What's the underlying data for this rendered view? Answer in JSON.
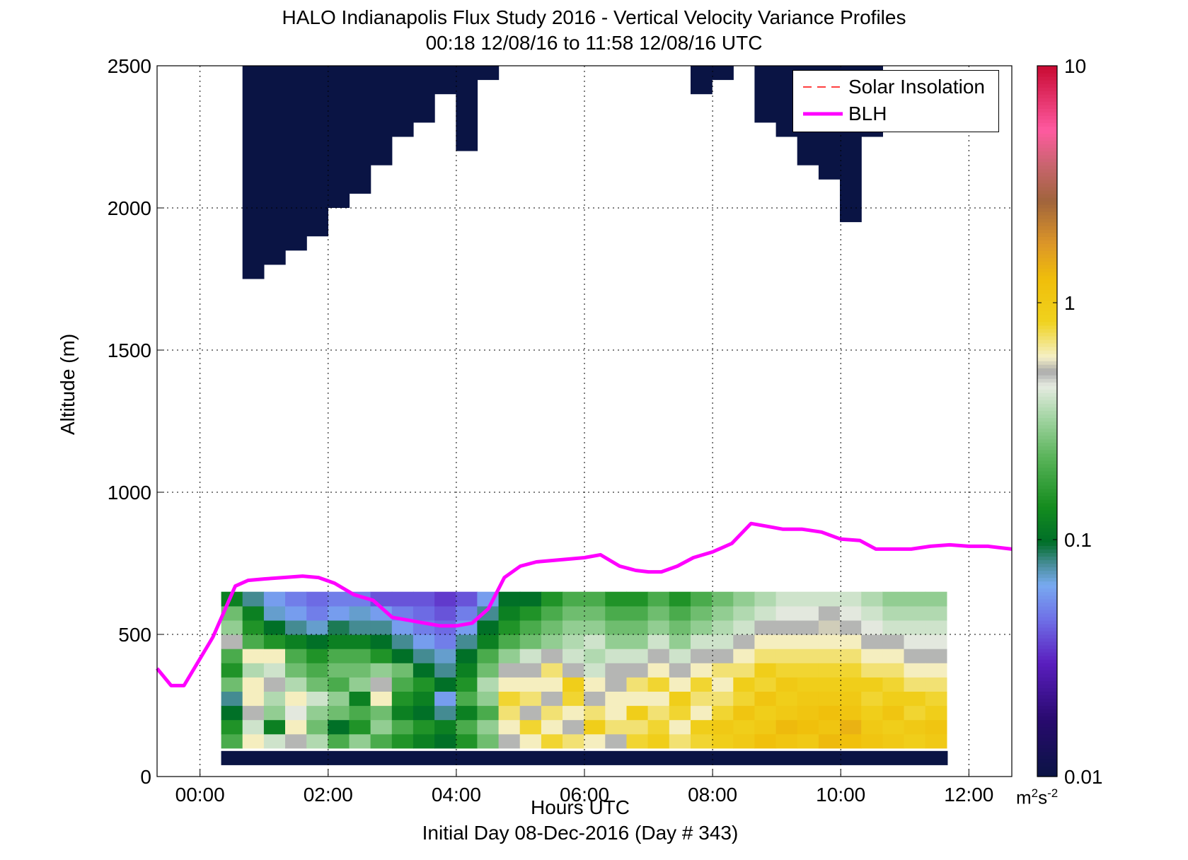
{
  "header": {
    "title_line1": "HALO Indianapolis Flux Study 2016 - Vertical Velocity Variance Profiles",
    "title_line2": "00:18 12/08/16 to 11:58 12/08/16  UTC"
  },
  "footer": {
    "initial_day": "Initial Day 08-Dec-2016 (Day # 343)"
  },
  "legend": {
    "entries": [
      "Solar Insolation",
      "BLH"
    ]
  },
  "colorbar": {
    "ticks": [
      "10",
      "1",
      "0.1",
      "0.01"
    ],
    "unit_base": "m",
    "unit_exp1": "2",
    "unit_mid": "s",
    "unit_exp2": "-2",
    "scale": "log",
    "range": [
      0.01,
      10
    ]
  },
  "colors": {
    "blh_line": "#ff00ff",
    "solar_line": "#ff0000",
    "low_variance": "#0a1444",
    "high_variance": "#c8102e"
  },
  "chart_data": {
    "type": "heatmap",
    "title": "HALO Indianapolis Flux Study 2016 - Vertical Velocity Variance Profiles",
    "subtitle": "00:18 12/08/16 to 11:58 12/08/16  UTC",
    "xlabel": "Hours UTC",
    "ylabel": "Altitude (m)",
    "xlim": [
      -0.67,
      12.67
    ],
    "ylim": [
      0,
      2500
    ],
    "xticks": [
      "00:00",
      "02:00",
      "04:00",
      "06:00",
      "08:00",
      "10:00",
      "12:00"
    ],
    "yticks": [
      "0",
      "500",
      "1000",
      "1500",
      "2000",
      "2500"
    ],
    "grid": true,
    "legend_position": "top-right",
    "heatmap": {
      "value_label": "vertical velocity variance (m^2 s^-2)",
      "time_start_h": 0.33,
      "time_step_h": 0.333,
      "alt_start_m": 100,
      "alt_step_m": 50,
      "low_level_profiles": [
        [
          0.2,
          0.15,
          0.1,
          0.08,
          0.25,
          0.15,
          0.2,
          0.5,
          0.3,
          0.25,
          0.12
        ],
        [
          0.6,
          0.4,
          0.5,
          0.6,
          0.6,
          0.35,
          0.6,
          0.2,
          0.15,
          0.12,
          0.08
        ],
        [
          0.4,
          0.12,
          0.3,
          0.35,
          0.5,
          0.4,
          0.6,
          0.15,
          0.1,
          0.07,
          0.06
        ],
        [
          0.5,
          0.6,
          0.45,
          0.6,
          0.35,
          0.25,
          0.2,
          0.12,
          0.08,
          0.06,
          0.05
        ],
        [
          0.35,
          0.25,
          0.3,
          0.4,
          0.25,
          0.2,
          0.15,
          0.1,
          0.07,
          0.05,
          0.045
        ],
        [
          0.2,
          0.1,
          0.25,
          0.3,
          0.2,
          0.25,
          0.2,
          0.12,
          0.09,
          0.06,
          0.05
        ],
        [
          0.3,
          0.15,
          0.2,
          0.12,
          0.3,
          0.25,
          0.2,
          0.12,
          0.08,
          0.07,
          0.05
        ],
        [
          0.2,
          0.3,
          0.25,
          0.6,
          0.5,
          0.3,
          0.15,
          0.1,
          0.08,
          0.06,
          0.04
        ],
        [
          0.15,
          0.2,
          0.12,
          0.15,
          0.2,
          0.25,
          0.1,
          0.08,
          0.06,
          0.05,
          0.04
        ],
        [
          0.12,
          0.15,
          0.1,
          0.12,
          0.15,
          0.1,
          0.08,
          0.06,
          0.05,
          0.045,
          0.04
        ],
        [
          0.1,
          0.12,
          0.08,
          0.06,
          0.1,
          0.08,
          0.07,
          0.05,
          0.045,
          0.04,
          0.035
        ],
        [
          0.15,
          0.2,
          0.12,
          0.2,
          0.15,
          0.12,
          0.1,
          0.08,
          0.06,
          0.05,
          0.04
        ],
        [
          0.25,
          0.3,
          0.2,
          0.3,
          0.35,
          0.25,
          0.2,
          0.12,
          0.1,
          0.08,
          0.06
        ],
        [
          0.5,
          0.6,
          0.7,
          0.8,
          0.6,
          0.5,
          0.3,
          0.2,
          0.15,
          0.12,
          0.1
        ],
        [
          0.6,
          0.8,
          0.5,
          0.7,
          0.6,
          0.5,
          0.4,
          0.25,
          0.2,
          0.15,
          0.1
        ],
        [
          0.8,
          0.6,
          0.7,
          0.5,
          0.6,
          0.7,
          0.5,
          0.3,
          0.25,
          0.2,
          0.15
        ],
        [
          0.7,
          0.5,
          0.6,
          0.8,
          0.9,
          0.5,
          0.4,
          0.35,
          0.3,
          0.25,
          0.2
        ],
        [
          0.6,
          0.9,
          0.7,
          0.5,
          0.6,
          0.4,
          0.35,
          0.4,
          0.3,
          0.25,
          0.2
        ],
        [
          0.5,
          0.7,
          0.6,
          0.6,
          0.5,
          0.5,
          0.4,
          0.3,
          0.25,
          0.2,
          0.15
        ],
        [
          0.8,
          0.7,
          0.9,
          0.6,
          0.7,
          0.5,
          0.4,
          0.3,
          0.25,
          0.2,
          0.15
        ],
        [
          0.9,
          0.8,
          0.7,
          0.6,
          0.8,
          0.6,
          0.5,
          0.4,
          0.3,
          0.25,
          0.2
        ],
        [
          0.7,
          0.6,
          0.8,
          0.9,
          0.6,
          0.5,
          0.4,
          0.3,
          0.25,
          0.2,
          0.15
        ],
        [
          0.8,
          0.9,
          0.6,
          0.7,
          0.8,
          0.6,
          0.5,
          0.4,
          0.3,
          0.25,
          0.2
        ],
        [
          0.9,
          1.0,
          0.8,
          0.7,
          0.6,
          0.7,
          0.5,
          0.4,
          0.35,
          0.3,
          0.25
        ],
        [
          1.0,
          0.9,
          1.1,
          0.8,
          0.9,
          0.7,
          0.6,
          0.5,
          0.4,
          0.35,
          0.3
        ],
        [
          1.2,
          1.0,
          0.9,
          1.1,
          0.8,
          0.9,
          0.7,
          0.6,
          0.5,
          0.4,
          0.35
        ],
        [
          1.1,
          1.3,
          1.0,
          0.9,
          1.0,
          0.8,
          0.7,
          0.6,
          0.5,
          0.45,
          0.4
        ],
        [
          1.0,
          1.2,
          1.1,
          1.0,
          0.9,
          0.8,
          0.7,
          0.6,
          0.5,
          0.45,
          0.4
        ],
        [
          1.3,
          1.1,
          1.2,
          1.0,
          0.9,
          0.8,
          0.7,
          0.6,
          0.55,
          0.5,
          0.4
        ],
        [
          1.2,
          1.4,
          1.1,
          1.0,
          0.9,
          0.8,
          0.7,
          0.6,
          0.5,
          0.45,
          0.4
        ],
        [
          1.1,
          1.0,
          0.9,
          0.8,
          0.9,
          0.7,
          0.6,
          0.5,
          0.45,
          0.4,
          0.35
        ],
        [
          1.0,
          0.9,
          1.1,
          0.9,
          0.8,
          0.7,
          0.6,
          0.5,
          0.4,
          0.35,
          0.3
        ],
        [
          0.9,
          1.0,
          0.8,
          0.9,
          0.7,
          0.6,
          0.5,
          0.45,
          0.4,
          0.35,
          0.3
        ],
        [
          1.0,
          1.1,
          0.9,
          0.8,
          0.7,
          0.6,
          0.5,
          0.45,
          0.4,
          0.35,
          0.3
        ]
      ],
      "top_coverage_m": [
        0,
        1750,
        1800,
        1850,
        1900,
        2000,
        2050,
        2150,
        2250,
        2300,
        2400,
        2200,
        2450,
        2500,
        0,
        0,
        0,
        0,
        0,
        0,
        0,
        0,
        2400,
        2450,
        2500,
        2300,
        2250,
        2150,
        2100,
        1950,
        2250,
        0,
        0,
        0
      ]
    },
    "series": [
      {
        "name": "BLH",
        "x": [
          -0.67,
          -0.45,
          -0.25,
          0.2,
          0.55,
          0.75,
          1.0,
          1.3,
          1.6,
          1.85,
          2.1,
          2.4,
          2.7,
          3.0,
          3.25,
          3.5,
          3.75,
          4.0,
          4.25,
          4.5,
          4.75,
          5.0,
          5.25,
          5.5,
          5.75,
          6.0,
          6.25,
          6.55,
          6.8,
          7.0,
          7.2,
          7.45,
          7.7,
          8.0,
          8.3,
          8.6,
          8.85,
          9.1,
          9.4,
          9.7,
          10.0,
          10.3,
          10.55,
          10.8,
          11.1,
          11.4,
          11.7,
          12.0,
          12.3,
          12.67
        ],
        "y": [
          380,
          320,
          320,
          490,
          670,
          690,
          695,
          700,
          705,
          700,
          680,
          640,
          620,
          560,
          550,
          540,
          530,
          530,
          540,
          590,
          700,
          740,
          755,
          760,
          765,
          770,
          780,
          740,
          725,
          720,
          720,
          740,
          770,
          790,
          820,
          890,
          880,
          870,
          870,
          860,
          835,
          830,
          800,
          800,
          800,
          810,
          815,
          810,
          810,
          800
        ]
      },
      {
        "name": "Solar Insolation",
        "x": [],
        "y": []
      }
    ],
    "colorbar_ticks": [
      10,
      1,
      0.1,
      0.01
    ]
  }
}
